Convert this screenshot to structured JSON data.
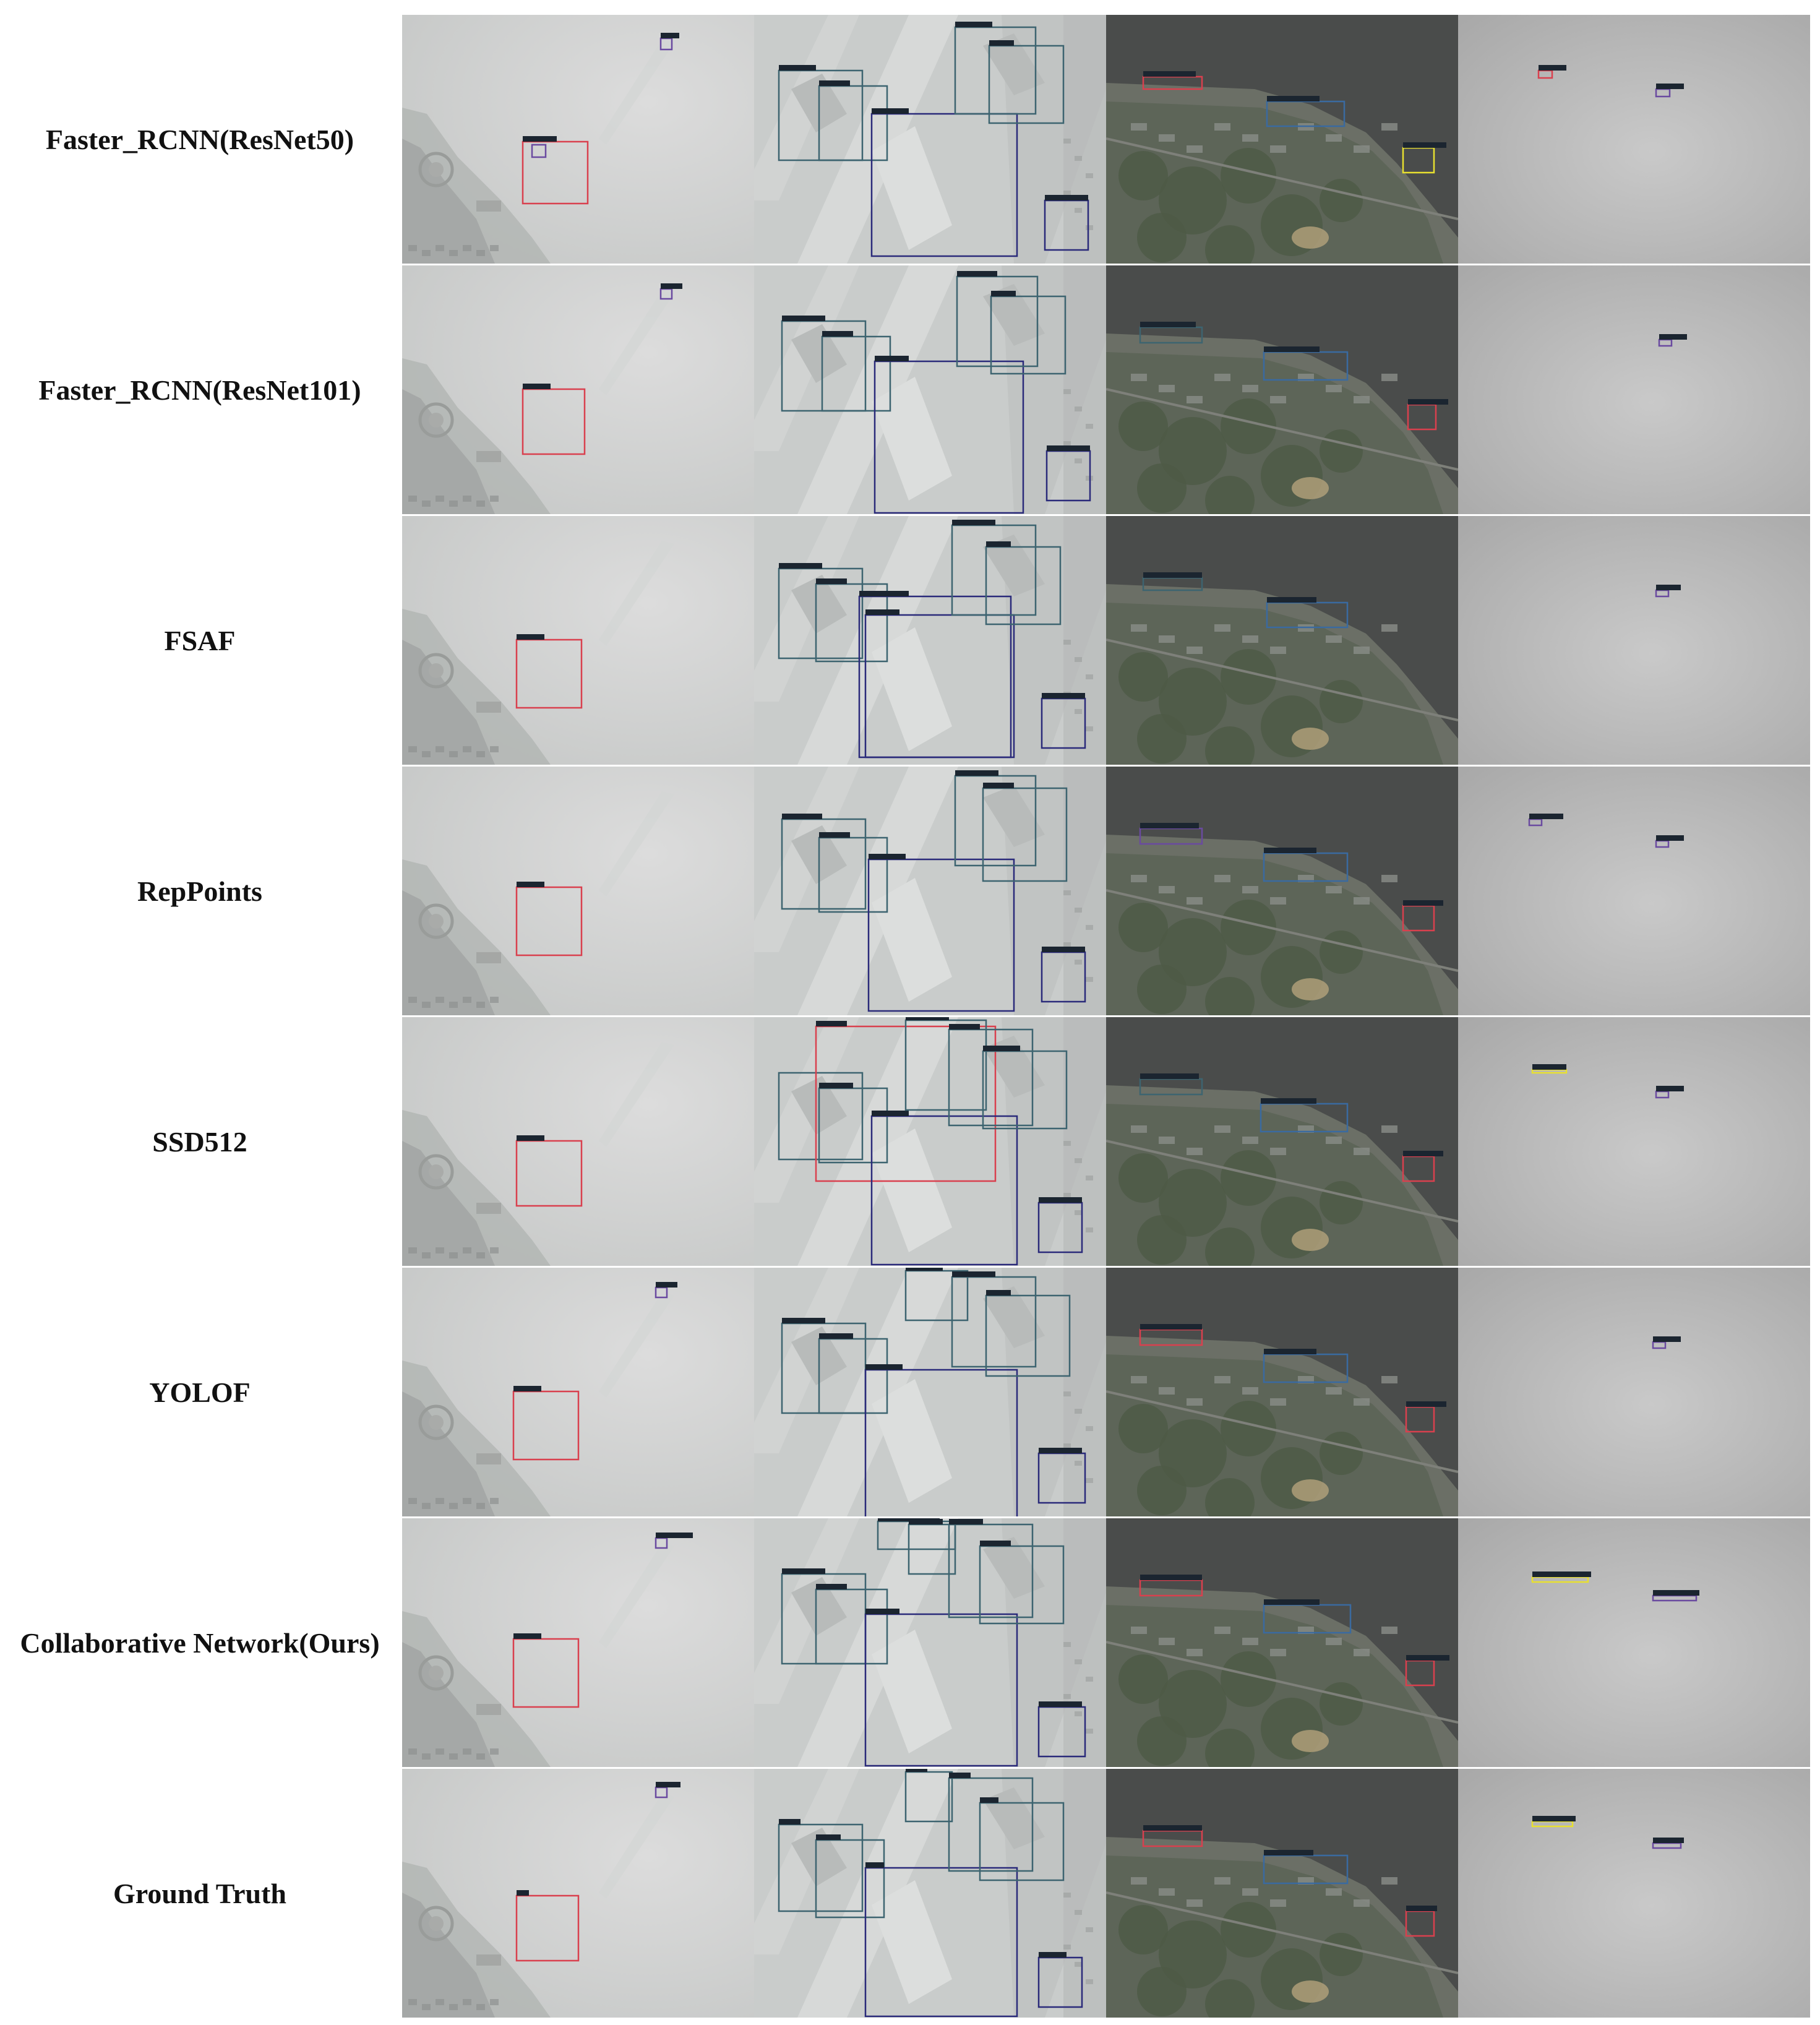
{
  "figure": {
    "rows": [
      {
        "label": "Faster_RCNN(ResNet50)"
      },
      {
        "label": "Faster_RCNN(ResNet101)"
      },
      {
        "label": "FSAF"
      },
      {
        "label": "RepPoints"
      },
      {
        "label": "SSD512"
      },
      {
        "label": "YOLOF"
      },
      {
        "label": "Collaborative Network(Ours)"
      },
      {
        "label": "Ground Truth"
      }
    ],
    "columns": [
      {
        "scene": "foggy-harbor-aerial"
      },
      {
        "scene": "foggy-dock-aerial"
      },
      {
        "scene": "dark-coastline-aerial"
      },
      {
        "scene": "foggy-open-sea"
      }
    ],
    "colors": {
      "box_red": "#d9404e",
      "box_navy": "#2a2a7a",
      "box_teal": "#3d6470",
      "box_blue": "#3a6aa0",
      "box_purple": "#6a4aa0",
      "box_yellow": "#e8e030",
      "label_dark": "#1b2530"
    }
  }
}
